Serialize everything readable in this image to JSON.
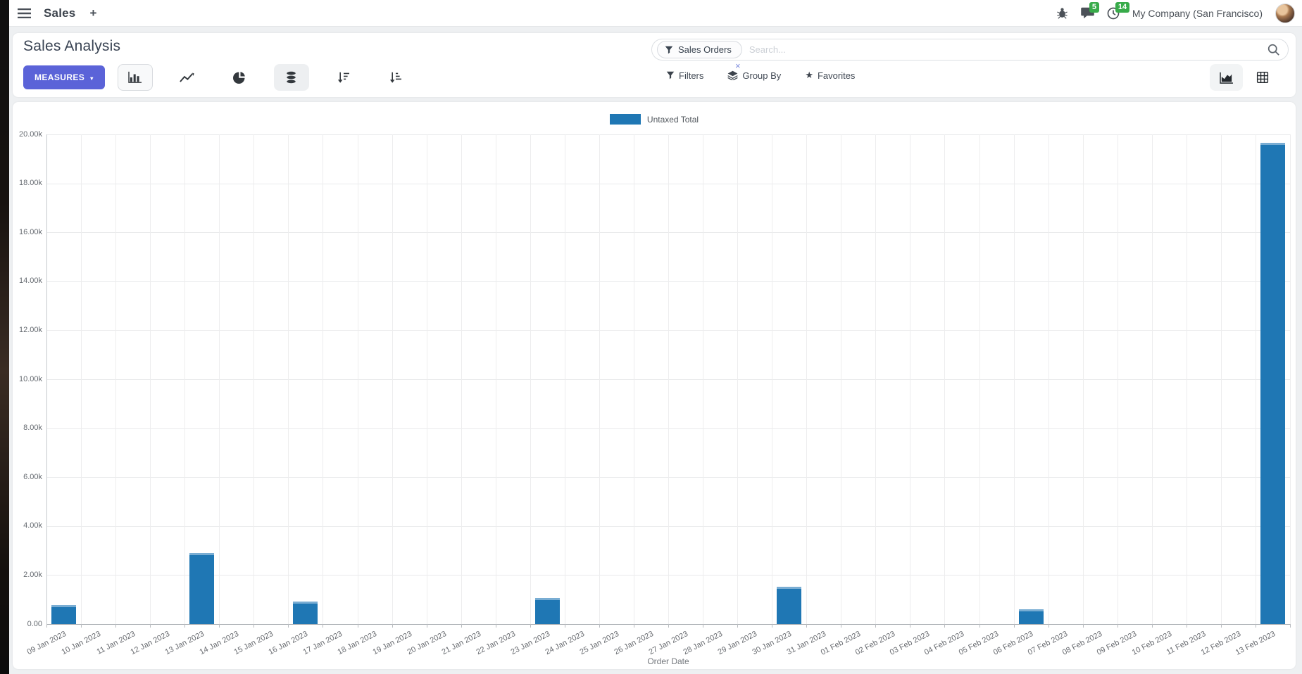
{
  "navbar": {
    "brand": "Sales",
    "plus_label": "+",
    "messages_badge": "5",
    "activities_badge": "14",
    "company": "My Company (San Francisco)"
  },
  "control_panel": {
    "title": "Sales Analysis",
    "measures_label": "MEASURES",
    "caret": "▾",
    "search": {
      "facet_label": "Sales Orders",
      "facet_remove": "×",
      "placeholder": "Search..."
    },
    "filters_label": "Filters",
    "group_by_label": "Group By",
    "favorites_label": "Favorites",
    "favorites_star": "★"
  },
  "chart_data": {
    "type": "bar",
    "title": "",
    "xlabel": "Order Date",
    "ylabel": "",
    "legend": [
      {
        "label": "Untaxed Total",
        "color": "#1f77b4"
      }
    ],
    "legend_position": "top-center",
    "grid": true,
    "ylim": [
      0,
      20000
    ],
    "ytick_step": 2000,
    "ytick_labels_top_to_bottom": [
      "20.00k",
      "18.00k",
      "16.00k",
      "14.00k",
      "12.00k",
      "10.00k",
      "8.00k",
      "6.00k",
      "4.00k",
      "2.00k",
      "0.00"
    ],
    "categories": [
      "09 Jan 2023",
      "10 Jan 2023",
      "11 Jan 2023",
      "12 Jan 2023",
      "13 Jan 2023",
      "14 Jan 2023",
      "15 Jan 2023",
      "16 Jan 2023",
      "17 Jan 2023",
      "18 Jan 2023",
      "19 Jan 2023",
      "20 Jan 2023",
      "21 Jan 2023",
      "22 Jan 2023",
      "23 Jan 2023",
      "24 Jan 2023",
      "25 Jan 2023",
      "26 Jan 2023",
      "27 Jan 2023",
      "28 Jan 2023",
      "29 Jan 2023",
      "30 Jan 2023",
      "31 Jan 2023",
      "01 Feb 2023",
      "02 Feb 2023",
      "03 Feb 2023",
      "04 Feb 2023",
      "05 Feb 2023",
      "06 Feb 2023",
      "07 Feb 2023",
      "08 Feb 2023",
      "09 Feb 2023",
      "10 Feb 2023",
      "11 Feb 2023",
      "12 Feb 2023",
      "13 Feb 2023"
    ],
    "series": [
      {
        "name": "Untaxed Total",
        "color": "#1f77b4",
        "values": [
          780,
          0,
          0,
          0,
          2900,
          0,
          0,
          930,
          0,
          0,
          0,
          0,
          0,
          0,
          1050,
          0,
          0,
          0,
          0,
          0,
          0,
          1510,
          0,
          0,
          0,
          0,
          0,
          0,
          600,
          0,
          0,
          0,
          0,
          0,
          0,
          19650
        ]
      }
    ]
  },
  "colors": {
    "accent": "#5b63d8",
    "bar": "#1f77b4",
    "badge_green": "#38ab4a"
  }
}
